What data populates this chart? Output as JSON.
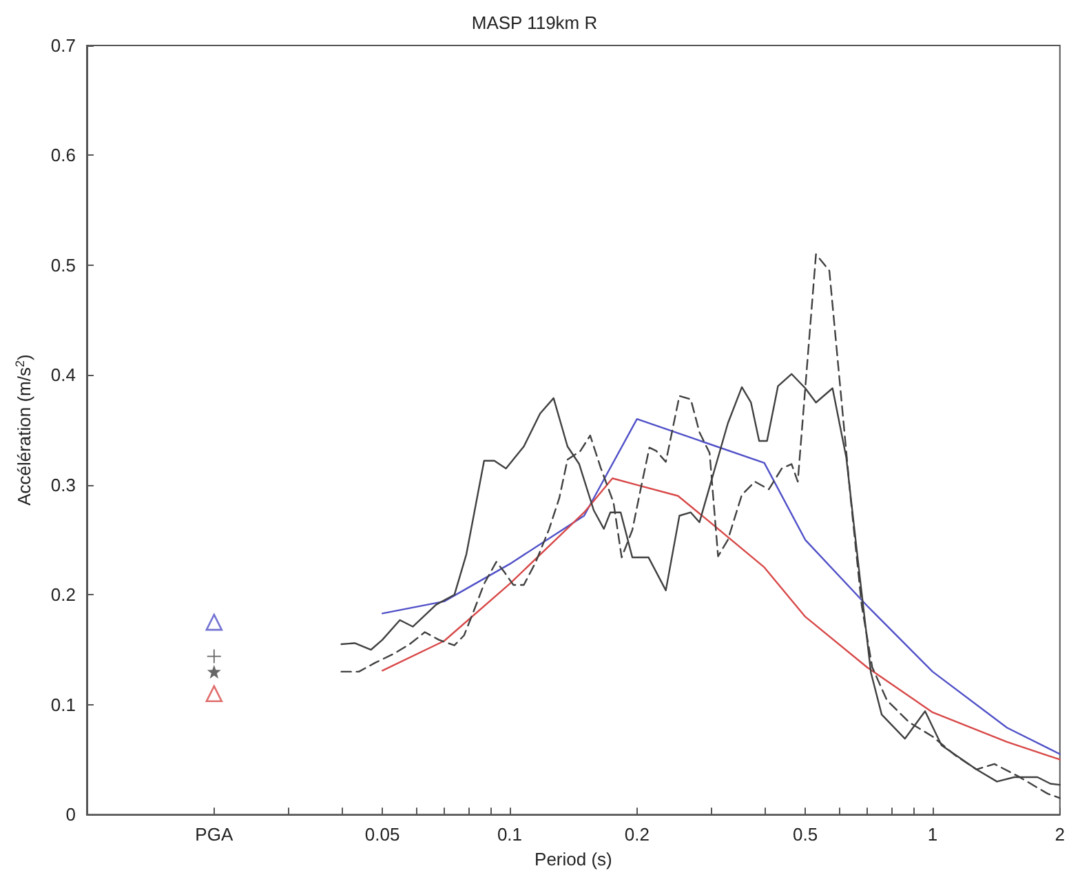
{
  "chart_data": {
    "type": "line",
    "title": "MASP 119km R",
    "xlabel": "Period (s)",
    "ylabel": "Accélération (m/s$^{2}$)",
    "log": "x",
    "grid": false,
    "marker": "none",
    "xlim": [
      0.01,
      2
    ],
    "xticks": [
      {
        "value": 0.02,
        "label": "PGA"
      },
      {
        "value": 0.03,
        "label": null
      },
      {
        "value": 0.04,
        "label": null
      },
      0.05,
      {
        "value": 0.06,
        "label": null
      },
      {
        "value": 0.07,
        "label": null
      },
      {
        "value": 0.08,
        "label": null
      },
      {
        "value": 0.09,
        "label": null
      },
      0.1,
      0.2,
      {
        "value": 0.3,
        "label": null
      },
      {
        "value": 0.4,
        "label": null
      },
      0.5,
      {
        "value": 0.6,
        "label": null
      },
      {
        "value": 0.7,
        "label": null
      },
      {
        "value": 0.8,
        "label": null
      },
      {
        "value": 0.9,
        "label": null
      },
      1,
      2
    ],
    "ylim": [
      0,
      0.7
    ],
    "yticks": [
      0,
      0.1,
      0.2,
      0.3,
      0.4,
      0.5,
      0.6,
      0.7
    ],
    "series": [
      {
        "type": "line",
        "color": "#5050c8",
        "line_style": "solid",
        "x": [
          0.05,
          0.07,
          0.1,
          0.15,
          0.2,
          0.4,
          0.5,
          0.7,
          1,
          1.5,
          2
        ],
        "values": [
          0.183,
          0.194,
          0.228,
          0.272,
          0.36,
          0.32,
          0.25,
          0.19,
          0.13,
          0.079,
          0.055
        ]
      },
      {
        "type": "line",
        "color": "#d84848",
        "line_style": "solid",
        "x": [
          0.05,
          0.07,
          0.1,
          0.15,
          0.175,
          0.2,
          0.25,
          0.3,
          0.4,
          0.5,
          0.7,
          1,
          1.5,
          2
        ],
        "values": [
          0.131,
          0.158,
          0.21,
          0.275,
          0.306,
          0.3,
          0.29,
          0.265,
          0.225,
          0.18,
          0.134,
          0.093,
          0.066,
          0.05
        ]
      },
      {
        "type": "line",
        "color": "#404040",
        "line_style": "solid",
        "x": [
          0.04,
          0.043,
          0.047,
          0.05,
          0.055,
          0.059,
          0.067,
          0.074,
          0.079,
          0.087,
          0.092,
          0.098,
          0.108,
          0.118,
          0.127,
          0.137,
          0.146,
          0.158,
          0.167,
          0.173,
          0.183,
          0.195,
          0.213,
          0.234,
          0.252,
          0.268,
          0.281,
          0.328,
          0.354,
          0.372,
          0.389,
          0.406,
          0.431,
          0.464,
          0.5,
          0.53,
          0.58,
          0.625,
          0.673,
          0.715,
          0.758,
          0.86,
          0.96,
          1.05,
          1.27,
          1.42,
          1.56,
          1.77,
          1.9,
          2
        ],
        "values": [
          0.155,
          0.156,
          0.15,
          0.159,
          0.177,
          0.171,
          0.191,
          0.2,
          0.237,
          0.322,
          0.322,
          0.315,
          0.335,
          0.365,
          0.379,
          0.335,
          0.319,
          0.277,
          0.26,
          0.275,
          0.275,
          0.234,
          0.234,
          0.204,
          0.272,
          0.275,
          0.266,
          0.356,
          0.389,
          0.375,
          0.34,
          0.34,
          0.39,
          0.401,
          0.388,
          0.375,
          0.388,
          0.325,
          0.216,
          0.129,
          0.091,
          0.069,
          0.094,
          0.063,
          0.041,
          0.03,
          0.034,
          0.034,
          0.028,
          0.027
        ]
      },
      {
        "type": "line",
        "color": "#404040",
        "line_style": "dashed",
        "x": [
          0.04,
          0.044,
          0.048,
          0.053,
          0.058,
          0.063,
          0.068,
          0.074,
          0.078,
          0.082,
          0.087,
          0.093,
          0.097,
          0.102,
          0.108,
          0.115,
          0.124,
          0.131,
          0.137,
          0.147,
          0.155,
          0.164,
          0.176,
          0.184,
          0.195,
          0.205,
          0.214,
          0.222,
          0.234,
          0.252,
          0.268,
          0.281,
          0.297,
          0.311,
          0.328,
          0.354,
          0.38,
          0.41,
          0.44,
          0.464,
          0.48,
          0.53,
          0.57,
          0.64,
          0.68,
          0.72,
          0.78,
          0.88,
          1,
          1.13,
          1.27,
          1.4,
          1.59,
          1.87,
          2
        ],
        "values": [
          0.13,
          0.13,
          0.138,
          0.146,
          0.155,
          0.166,
          0.159,
          0.154,
          0.163,
          0.184,
          0.21,
          0.23,
          0.221,
          0.209,
          0.209,
          0.229,
          0.26,
          0.288,
          0.323,
          0.331,
          0.345,
          0.316,
          0.284,
          0.234,
          0.259,
          0.3,
          0.334,
          0.331,
          0.321,
          0.381,
          0.378,
          0.348,
          0.329,
          0.235,
          0.25,
          0.291,
          0.303,
          0.296,
          0.315,
          0.319,
          0.303,
          0.51,
          0.495,
          0.288,
          0.19,
          0.134,
          0.104,
          0.084,
          0.071,
          0.054,
          0.041,
          0.046,
          0.035,
          0.019,
          0.015
        ]
      },
      {
        "type": "scatter",
        "color": "#5050c8",
        "marker": "triangle",
        "x": [
          0.02
        ],
        "values": [
          0.175
        ]
      },
      {
        "type": "scatter",
        "color": "#404040",
        "marker": "cross",
        "x": [
          0.02
        ],
        "values": [
          0.144
        ]
      },
      {
        "type": "scatter",
        "color": "#404040",
        "marker": "star",
        "x": [
          0.02
        ],
        "values": [
          0.13
        ]
      },
      {
        "type": "scatter",
        "color": "#d84848",
        "marker": "triangle",
        "x": [
          0.02
        ],
        "values": [
          0.11
        ]
      }
    ]
  }
}
